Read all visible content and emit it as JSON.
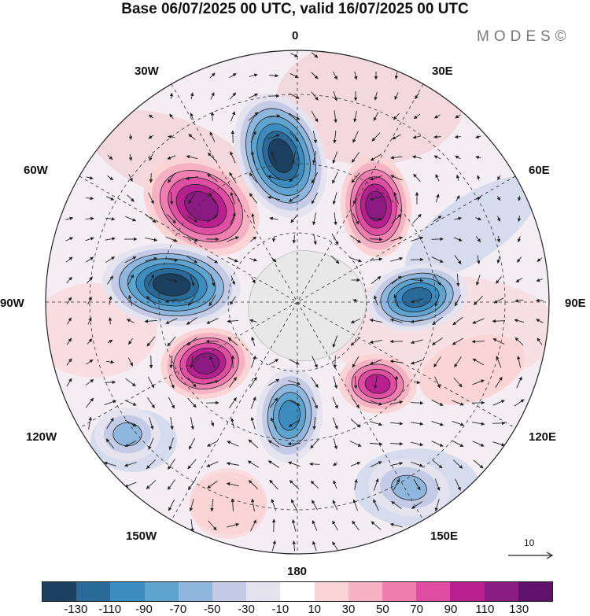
{
  "title": "Base 06/07/2025 00 UTC, valid 16/07/2025 00 UTC",
  "logo": "MODES©",
  "longitude_labels": {
    "lon_0": "0",
    "lon_30e": "30E",
    "lon_60e": "60E",
    "lon_90e": "90E",
    "lon_120e": "120E",
    "lon_150e": "150E",
    "lon_180": "180",
    "lon_150w": "150W",
    "lon_120w": "120W",
    "lon_90w": "90W",
    "lon_60w": "60W",
    "lon_30w": "30W"
  },
  "reference_vector": {
    "value": "10"
  },
  "colorbar": {
    "colors": [
      "#1b3f5e",
      "#2a6a98",
      "#3d8cc0",
      "#5fa3cf",
      "#8fb6dc",
      "#c3cbe6",
      "#e6e3f0",
      "#ffffff",
      "#fbd5d5",
      "#f6b1c3",
      "#ee7fb0",
      "#df4ea2",
      "#b8208f",
      "#8b1a82",
      "#5e126b"
    ],
    "labels": [
      "-130",
      "-110",
      "-90",
      "-70",
      "-50",
      "-30",
      "-10",
      "10",
      "30",
      "50",
      "70",
      "90",
      "110",
      "130"
    ]
  },
  "anomaly_centers": [
    {
      "sign": "negative",
      "level": -130,
      "color": "#1b3f5e"
    },
    {
      "sign": "positive",
      "level": 110,
      "color": "#8b1a82"
    },
    {
      "sign": "positive",
      "level": 110,
      "color": "#8b1a82"
    },
    {
      "sign": "negative",
      "level": -130,
      "color": "#1b3f5e"
    },
    {
      "sign": "negative",
      "level": -110,
      "color": "#2a6a98"
    },
    {
      "sign": "positive",
      "level": 110,
      "color": "#8b1a82"
    },
    {
      "sign": "positive",
      "level": 90,
      "color": "#b8208f"
    },
    {
      "sign": "negative",
      "level": -90,
      "color": "#3d8cc0"
    },
    {
      "sign": "negative",
      "level": -50,
      "color": "#8fb6dc"
    },
    {
      "sign": "positive",
      "level": 30,
      "color": "#fbd5d5"
    },
    {
      "sign": "negative",
      "level": -50,
      "color": "#8fb6dc"
    },
    {
      "sign": "positive",
      "level": 30,
      "color": "#fbd5d5"
    }
  ]
}
